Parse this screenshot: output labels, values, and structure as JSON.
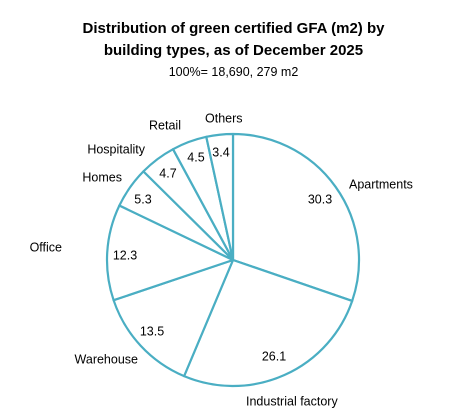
{
  "chart_data": {
    "type": "pie",
    "title_line1": "Distribution of green certified GFA (m2) by",
    "title_line2": "building types, as of December 2025",
    "subtitle": "100%= 18,690, 279 m2",
    "slice_color": "#ffffff",
    "stroke_color": "#4aaec3",
    "slices": [
      {
        "name": "Apartments",
        "value": 30.3,
        "label": "30.3"
      },
      {
        "name": "Industrial factory",
        "value": 26.1,
        "label": "26.1"
      },
      {
        "name": "Warehouse",
        "value": 13.5,
        "label": "13.5"
      },
      {
        "name": "Office",
        "value": 12.3,
        "label": "12.3"
      },
      {
        "name": "Homes",
        "value": 5.3,
        "label": "5.3"
      },
      {
        "name": "Hospitality",
        "value": 4.7,
        "label": "4.7"
      },
      {
        "name": "Retail",
        "value": 4.5,
        "label": "4.5"
      },
      {
        "name": "Others",
        "value": 3.4,
        "label": "3.4"
      }
    ]
  }
}
